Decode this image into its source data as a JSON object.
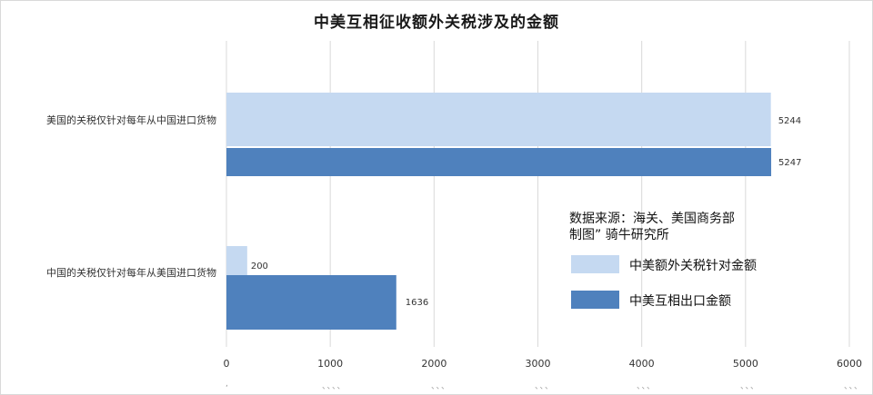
{
  "chart_data": {
    "type": "bar",
    "orientation": "horizontal",
    "title": "中美互相征收额外关税涉及的金额",
    "categories": [
      "美国的关税仅针对每年从中国进口货物",
      "中国的关税仅针对每年从美国进口货物"
    ],
    "series": [
      {
        "name": "中美额外关税针对金额",
        "values": [
          5244,
          200
        ],
        "color": "#c5d9f1"
      },
      {
        "name": "中美互相出口金额",
        "values": [
          5247,
          1636
        ],
        "color": "#4f81bd"
      }
    ],
    "xlim": [
      0,
      6000
    ],
    "xticks": [
      "0",
      "1000",
      "2000",
      "3000",
      "4000",
      "5000",
      "6000"
    ],
    "grid": true,
    "legend_position": "right"
  },
  "source_note": "数据来源：海关、美国商务部\n制图” 骑牛研究所",
  "bottom_marks": [
    ",",
    "、、、、",
    "、、、",
    "、、、",
    "、、、",
    "、、、",
    "、、、"
  ]
}
